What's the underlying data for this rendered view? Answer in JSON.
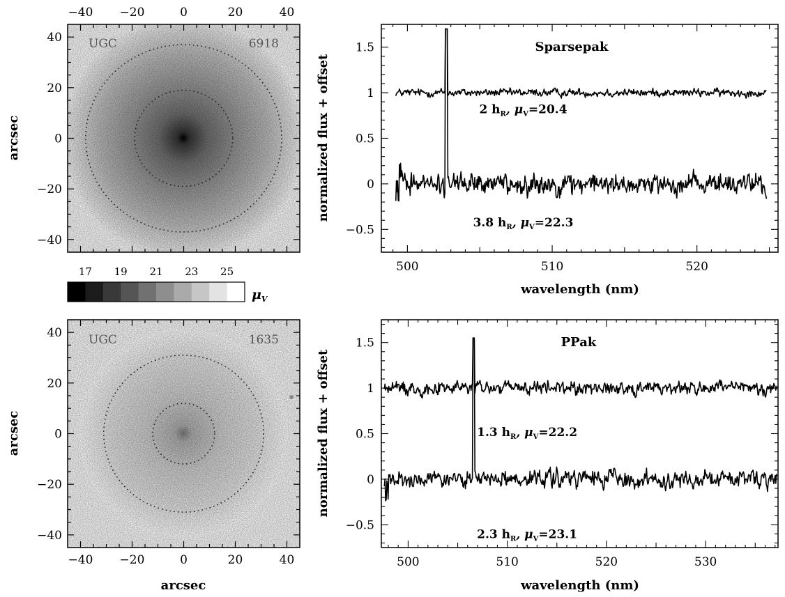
{
  "chart_data": [
    {
      "type": "image",
      "panel": "galaxy-top",
      "label_left": "UGC",
      "label_right": "6918",
      "ylabel": "arcsec",
      "xlim": [
        -45,
        45
      ],
      "ylim": [
        -45,
        45
      ],
      "xticks": [
        -40,
        -20,
        0,
        20,
        40
      ],
      "yticks": [
        -40,
        -20,
        0,
        20,
        40
      ],
      "x_tick_labels_position": "top",
      "ellipses_arcsec": [
        {
          "rx": 38,
          "ry": 37
        },
        {
          "rx": 19,
          "ry": 19
        }
      ]
    },
    {
      "type": "colorbar",
      "tick_labels": [
        "17",
        "19",
        "21",
        "23",
        "25"
      ],
      "label": "μ",
      "label_subscript": "V",
      "range": [
        16,
        26
      ],
      "steps": 10
    },
    {
      "type": "image",
      "panel": "galaxy-bottom",
      "label_left": "UGC",
      "label_right": "1635",
      "xlabel": "arcsec",
      "ylabel": "arcsec",
      "xlim": [
        -45,
        45
      ],
      "ylim": [
        -45,
        45
      ],
      "xticks": [
        -40,
        -20,
        0,
        20,
        40
      ],
      "yticks": [
        -40,
        -20,
        0,
        20,
        40
      ],
      "ellipses_arcsec": [
        {
          "rx": 31,
          "ry": 31
        },
        {
          "rx": 12,
          "ry": 12
        }
      ]
    },
    {
      "type": "line",
      "panel": "spectrum-top",
      "title": "Sparsepak",
      "xlabel": "wavelength (nm)",
      "ylabel": "normalized flux + offset",
      "xlim": [
        498.2,
        525.6
      ],
      "ylim": [
        -0.75,
        1.75
      ],
      "xticks": [
        500,
        510,
        520
      ],
      "yticks": [
        -0.5,
        0,
        0.5,
        1,
        1.5
      ],
      "ytick_labels": [
        "−0.5",
        "0",
        "0.5",
        "1",
        "1.5"
      ],
      "series": [
        {
          "x_range": [
            499.2,
            524.8
          ],
          "level": 1.0,
          "noise": 0.05,
          "line_peak": {
            "x": 502.7,
            "y": 1.7
          }
        },
        {
          "x_range": [
            499.2,
            524.8
          ],
          "level": 0.0,
          "noise": 0.14,
          "line_peak": {
            "x": 502.7,
            "y": 1.7
          }
        }
      ],
      "annotations": [
        {
          "prefix": "2 h",
          "sub1": "R",
          "mid": ", μ",
          "sub2": "V",
          "suffix": "=20.4",
          "x": 508.0,
          "y": 0.82
        },
        {
          "prefix": "3.8 h",
          "sub1": "R",
          "mid": ", μ",
          "sub2": "V",
          "suffix": "=22.3",
          "x": 508.0,
          "y": -0.42
        }
      ]
    },
    {
      "type": "line",
      "panel": "spectrum-bottom",
      "title": "PPak",
      "xlabel": "wavelength (nm)",
      "ylabel": "normalized flux + offset",
      "xlim": [
        497.3,
        537.3
      ],
      "ylim": [
        -0.75,
        1.75
      ],
      "xticks": [
        500,
        510,
        520,
        530
      ],
      "yticks": [
        -0.5,
        0,
        0.5,
        1,
        1.5
      ],
      "ytick_labels": [
        "−0.5",
        "0",
        "0.5",
        "1",
        "1.5"
      ],
      "series": [
        {
          "x_range": [
            497.6,
            537.2
          ],
          "level": 1.0,
          "noise": 0.09,
          "line_peak": {
            "x": 506.6,
            "y": 1.55
          }
        },
        {
          "x_range": [
            497.6,
            537.2
          ],
          "level": 0.0,
          "noise": 0.11,
          "line_peak": {
            "x": 506.6,
            "y": 1.55
          }
        }
      ],
      "annotations": [
        {
          "prefix": "1.3 h",
          "sub1": "R",
          "mid": ", μ",
          "sub2": "V",
          "suffix": "=22.2",
          "x": 512.0,
          "y": 0.52
        },
        {
          "prefix": "2.3 h",
          "sub1": "R",
          "mid": ", μ",
          "sub2": "V",
          "suffix": "=23.1",
          "x": 512.0,
          "y": -0.6
        }
      ]
    }
  ]
}
